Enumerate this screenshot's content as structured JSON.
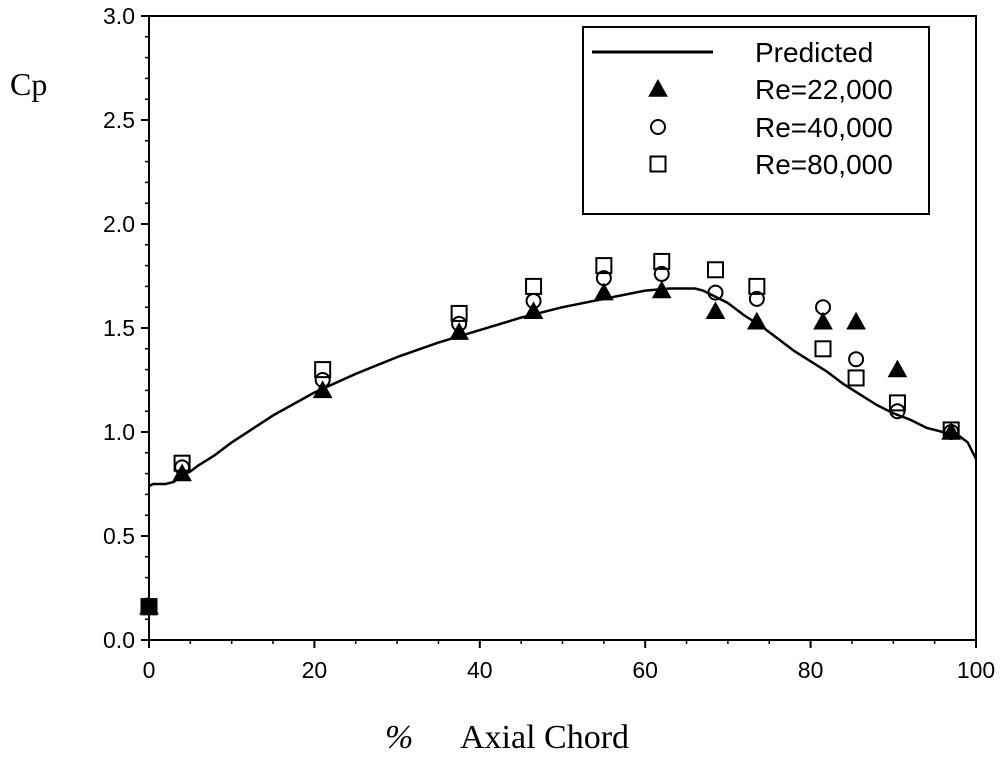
{
  "chart_data": {
    "type": "line",
    "title": "",
    "xlabel": "Axial Chord",
    "xlabel_prefix": "%",
    "ylabel": "Cp",
    "xlim": [
      0,
      100
    ],
    "ylim": [
      0,
      3.0
    ],
    "xticks": [
      0,
      20,
      40,
      60,
      80,
      100
    ],
    "yticks": [
      0.0,
      0.5,
      1.0,
      1.5,
      2.0,
      2.5,
      3.0
    ],
    "xtick_labels": [
      "0",
      "20",
      "40",
      "60",
      "80",
      "100"
    ],
    "ytick_labels": [
      "0.0",
      "0.5",
      "1.0",
      "1.5",
      "2.0",
      "2.5",
      "3.0"
    ],
    "grid": false,
    "legend_position": "top-right",
    "series": [
      {
        "name": "Predicted",
        "marker": "line",
        "x": [
          0,
          0.5,
          2,
          3,
          4,
          5,
          6,
          8,
          10,
          15,
          20,
          25,
          30,
          35,
          40,
          45,
          50,
          55,
          60,
          63,
          65,
          66,
          67,
          68,
          70,
          72,
          74,
          76,
          78,
          80,
          82,
          84,
          86,
          88,
          90,
          92,
          94,
          96,
          98,
          99,
          100
        ],
        "y": [
          0.74,
          0.75,
          0.75,
          0.76,
          0.79,
          0.81,
          0.84,
          0.89,
          0.95,
          1.08,
          1.19,
          1.28,
          1.36,
          1.43,
          1.49,
          1.55,
          1.6,
          1.64,
          1.68,
          1.69,
          1.69,
          1.69,
          1.68,
          1.66,
          1.62,
          1.56,
          1.51,
          1.45,
          1.39,
          1.34,
          1.29,
          1.23,
          1.18,
          1.13,
          1.09,
          1.06,
          1.02,
          1.0,
          0.98,
          0.95,
          0.87
        ]
      },
      {
        "name": "Re=22,000",
        "marker": "filled-triangle",
        "x": [
          0,
          4,
          21,
          37.5,
          46.5,
          55,
          62,
          68.5,
          73.5,
          81.5,
          85.5,
          90.5,
          97
        ],
        "y": [
          0.16,
          0.8,
          1.2,
          1.48,
          1.58,
          1.67,
          1.68,
          1.58,
          1.53,
          1.53,
          1.53,
          1.3,
          1.0
        ]
      },
      {
        "name": "Re=40,000",
        "marker": "open-circle",
        "x": [
          0,
          4,
          21,
          37.5,
          46.5,
          55,
          62,
          68.5,
          73.5,
          81.5,
          85.5,
          90.5,
          97
        ],
        "y": [
          0.16,
          0.83,
          1.25,
          1.52,
          1.63,
          1.74,
          1.76,
          1.67,
          1.64,
          1.6,
          1.35,
          1.1,
          1.0
        ]
      },
      {
        "name": "Re=80,000",
        "marker": "open-square",
        "x": [
          0,
          4,
          21,
          37.5,
          46.5,
          55,
          62,
          68.5,
          73.5,
          81.5,
          85.5,
          90.5,
          97
        ],
        "y": [
          0.16,
          0.85,
          1.3,
          1.57,
          1.7,
          1.8,
          1.82,
          1.78,
          1.7,
          1.4,
          1.26,
          1.14,
          1.01
        ]
      }
    ]
  }
}
